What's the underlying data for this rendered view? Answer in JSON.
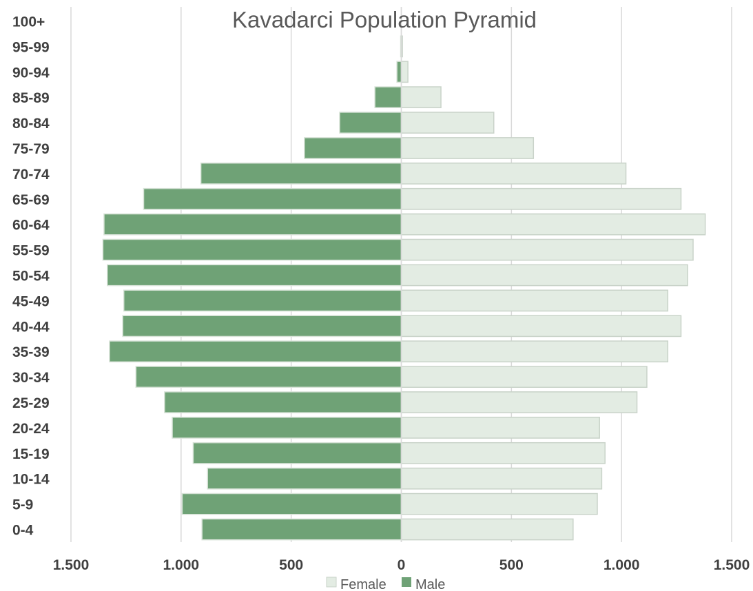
{
  "chart_data": {
    "type": "bar",
    "orientation": "horizontal",
    "title": "Kavadarci Population Pyramid",
    "categories": [
      "0-4",
      "5-9",
      "10-14",
      "15-19",
      "20-24",
      "25-29",
      "30-34",
      "35-39",
      "40-44",
      "45-49",
      "50-54",
      "55-59",
      "60-64",
      "65-69",
      "70-74",
      "75-79",
      "80-84",
      "85-89",
      "90-94",
      "95-99",
      "100+"
    ],
    "series": [
      {
        "name": "Female",
        "color": "#e3ece3",
        "values": [
          780,
          890,
          910,
          925,
          900,
          1070,
          1115,
          1210,
          1270,
          1210,
          1300,
          1325,
          1380,
          1270,
          1020,
          600,
          420,
          180,
          30,
          5,
          0
        ]
      },
      {
        "name": "Male",
        "color": "#6fa276",
        "values": [
          -905,
          -995,
          -880,
          -945,
          -1040,
          -1075,
          -1205,
          -1325,
          -1265,
          -1260,
          -1335,
          -1355,
          -1350,
          -1170,
          -910,
          -440,
          -280,
          -120,
          -20,
          -3,
          0
        ]
      }
    ],
    "xlim": [
      -1500,
      1500
    ],
    "xticks": [
      -1500,
      -1000,
      -500,
      0,
      500,
      1000,
      1500
    ],
    "xtick_labels": [
      "1.500",
      "1.000",
      "500",
      "0",
      "500",
      "1.000",
      "1.500"
    ],
    "grid": true,
    "legend_position": "bottom"
  }
}
